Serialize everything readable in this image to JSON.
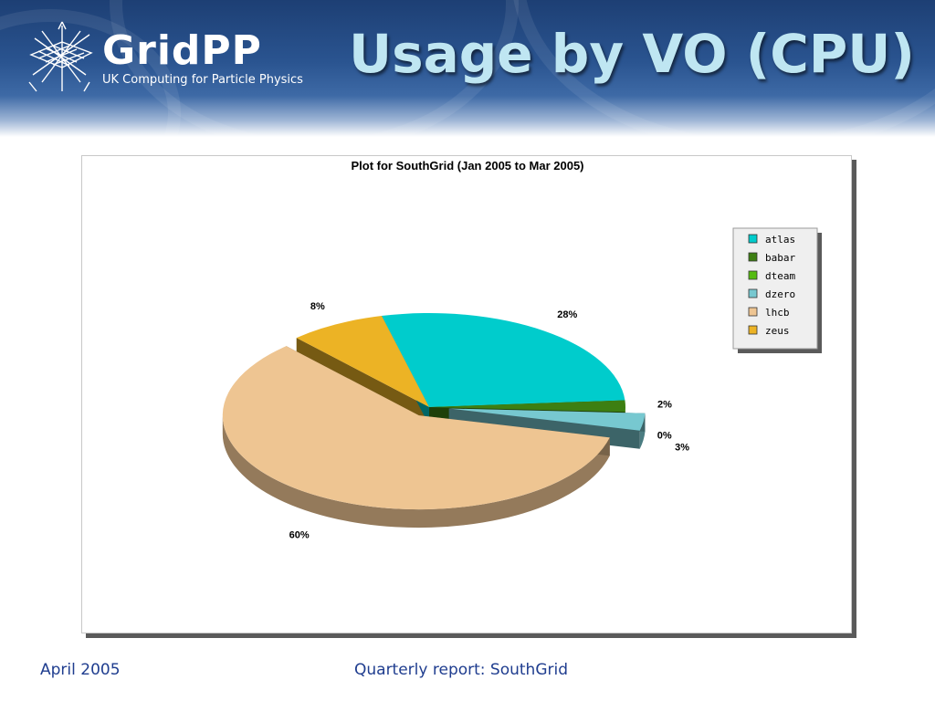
{
  "header": {
    "logo_name": "GridPP",
    "logo_tagline": "UK Computing for Particle Physics",
    "slide_title": "Usage by VO (CPU)"
  },
  "footer": {
    "date": "April 2005",
    "report": "Quarterly report: SouthGrid"
  },
  "chart_data": {
    "type": "pie",
    "title": "Plot for SouthGrid (Jan 2005 to Mar 2005)",
    "legend_position": "top-right",
    "categories": [
      "atlas",
      "babar",
      "dteam",
      "dzero",
      "lhcb",
      "zeus"
    ],
    "values": [
      28,
      2,
      0,
      3,
      60,
      8
    ],
    "labels": [
      "28%",
      "2%",
      "0%",
      "3%",
      "60%",
      "8%"
    ],
    "colors": [
      "#00cccc",
      "#3d7f12",
      "#55bb11",
      "#77c8d0",
      "#eec592",
      "#ecb325"
    ],
    "exploded": [
      "lhcb",
      "dzero"
    ]
  }
}
